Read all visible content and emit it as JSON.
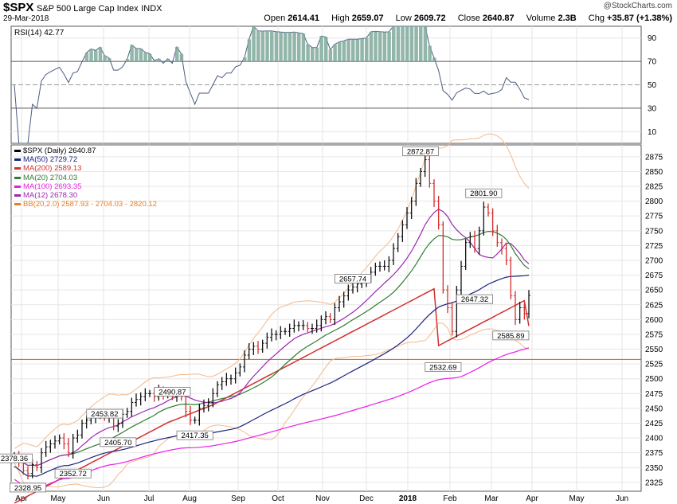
{
  "header": {
    "symbol": "$SPX",
    "description": "S&P 500 Large Cap Index",
    "exchange": "INDX",
    "date": "29-Mar-2018",
    "copyright": "@StockCharts.com",
    "open_label": "Open",
    "open": "2614.41",
    "high_label": "High",
    "high": "2659.07",
    "low_label": "Low",
    "low": "2609.72",
    "close_label": "Close",
    "close": "2640.87",
    "volume_label": "Volume",
    "volume": "2.3B",
    "chg_label": "Chg",
    "chg": "+35.87 (+1.38%)"
  },
  "rsi_panel": {
    "label": "RSI(14) 42.77",
    "levels": [
      90,
      70,
      50,
      30,
      10
    ]
  },
  "price_panel": {
    "legend": [
      {
        "text": "$SPX (Daily) 2640.87",
        "color": "#000000"
      },
      {
        "text": "MA(50) 2729.72",
        "color": "#1a237e"
      },
      {
        "text": "MA(200) 2589.13",
        "color": "#d32f2f"
      },
      {
        "text": "MA(20) 2704.03",
        "color": "#2e7d32"
      },
      {
        "text": "MA(100) 2693.35",
        "color": "#e91ee3"
      },
      {
        "text": "MA(12) 2678.30",
        "color": "#9c27b0"
      },
      {
        "text": "BB(20,2.0) 2587.93 - 2704.03 - 2820.12",
        "color": "#e67e22"
      }
    ]
  },
  "chart_data": {
    "type": "line",
    "title": "$SPX S&P 500 Large Cap Index",
    "x_labels": [
      "Apr",
      "May",
      "Jun",
      "Jul",
      "Aug",
      "Sep",
      "Oct",
      "Nov",
      "Dec",
      "2018",
      "Feb",
      "Mar",
      "Apr",
      "May",
      "Jun"
    ],
    "y_ticks": [
      2325,
      2350,
      2375,
      2400,
      2425,
      2450,
      2475,
      2500,
      2525,
      2550,
      2575,
      2600,
      2625,
      2650,
      2675,
      2700,
      2725,
      2750,
      2775,
      2800,
      2825,
      2850,
      2875
    ],
    "ylim": [
      2310,
      2895
    ],
    "support_line": 2532.69,
    "annotations": [
      {
        "label": "2378.36",
        "x": 0,
        "y": 2378.36
      },
      {
        "label": "2328.95",
        "x": 3,
        "y": 2328.95
      },
      {
        "label": "2453.82",
        "x": 20,
        "y": 2453.82
      },
      {
        "label": "2352.72",
        "x": 13,
        "y": 2352.72
      },
      {
        "label": "2405.70",
        "x": 23,
        "y": 2405.7
      },
      {
        "label": "2490.87",
        "x": 35,
        "y": 2490.87
      },
      {
        "label": "2417.35",
        "x": 40,
        "y": 2417.35
      },
      {
        "label": "2657.74",
        "x": 75,
        "y": 2657.74
      },
      {
        "label": "2872.87",
        "x": 90,
        "y": 2872.87
      },
      {
        "label": "2532.69",
        "x": 95,
        "y": 2532.69
      },
      {
        "label": "2801.90",
        "x": 104,
        "y": 2801.9
      },
      {
        "label": "2647.32",
        "x": 102,
        "y": 2647.32
      },
      {
        "label": "2585.89",
        "x": 110,
        "y": 2585.89
      }
    ],
    "series": [
      {
        "name": "$SPX",
        "values": [
          2370,
          2360,
          2345,
          2340,
          2355,
          2350,
          2375,
          2385,
          2390,
          2395,
          2400,
          2390,
          2375,
          2400,
          2405,
          2425,
          2430,
          2435,
          2440,
          2440,
          2435,
          2435,
          2420,
          2425,
          2440,
          2445,
          2460,
          2465,
          2470,
          2475,
          2475,
          2470,
          2480,
          2475,
          2475,
          2470,
          2475,
          2470,
          2445,
          2430,
          2430,
          2450,
          2455,
          2460,
          2475,
          2490,
          2495,
          2500,
          2500,
          2510,
          2520,
          2540,
          2550,
          2555,
          2550,
          2560,
          2570,
          2575,
          2575,
          2580,
          2580,
          2585,
          2590,
          2590,
          2590,
          2585,
          2585,
          2590,
          2600,
          2605,
          2600,
          2620,
          2630,
          2640,
          2650,
          2655,
          2660,
          2665,
          2670,
          2680,
          2690,
          2690,
          2690,
          2700,
          2720,
          2740,
          2760,
          2780,
          2800,
          2830,
          2850,
          2870,
          2830,
          2800,
          2760,
          2650,
          2620,
          2580,
          2650,
          2690,
          2730,
          2740,
          2720,
          2750,
          2790,
          2780,
          2750,
          2730,
          2720,
          2700,
          2640,
          2600,
          2620,
          2610,
          2641
        ]
      },
      {
        "name": "MA(200)",
        "values": [
          2290,
          2294,
          2298,
          2302,
          2306,
          2310,
          2314,
          2318,
          2322,
          2326,
          2330,
          2334,
          2338,
          2342,
          2346,
          2350,
          2354,
          2358,
          2362,
          2366,
          2370,
          2374,
          2378,
          2382,
          2386,
          2390,
          2394,
          2398,
          2402,
          2406,
          2410,
          2414,
          2418,
          2422,
          2426,
          2429,
          2432,
          2435,
          2438,
          2441,
          2444,
          2447,
          2450,
          2453,
          2456,
          2460,
          2464,
          2468,
          2472,
          2476,
          2480,
          2484,
          2488,
          2492,
          2496,
          2500,
          2504,
          2508,
          2512,
          2516,
          2520,
          2524,
          2528,
          2532,
          2536,
          2540,
          2544,
          2548,
          2552,
          2556,
          2560,
          2564,
          2568,
          2572,
          2576,
          2580,
          2584,
          2588,
          2592,
          2596,
          2600,
          2604,
          2608,
          2612,
          2616,
          2620,
          2624,
          2628,
          2632,
          2636,
          2640,
          2644,
          2648,
          2652,
          2556,
          2560,
          2564,
          2568,
          2572,
          2576,
          2580,
          2584,
          2588,
          2592,
          2596,
          2600,
          2604,
          2608,
          2612,
          2616,
          2620,
          2624,
          2628,
          2632,
          2589
        ]
      }
    ]
  }
}
